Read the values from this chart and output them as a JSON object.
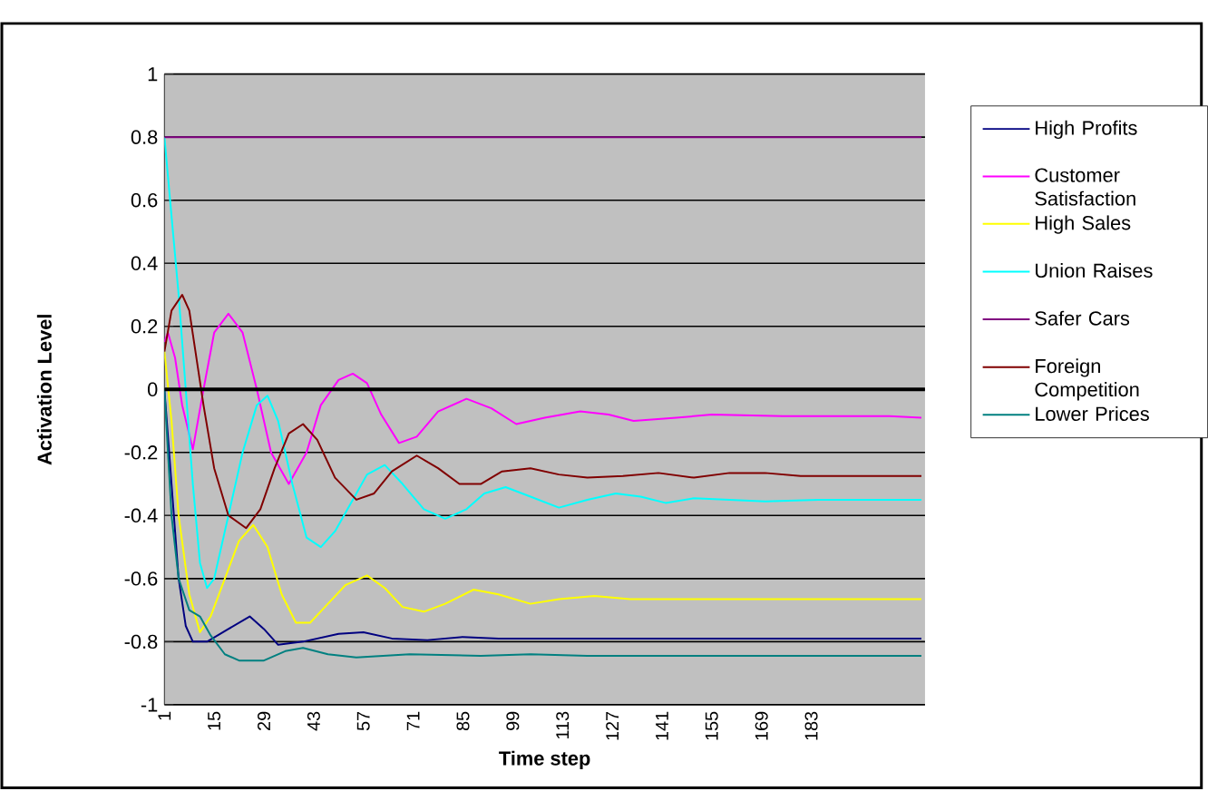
{
  "chart_data": {
    "type": "line",
    "xlabel": "Time step",
    "ylabel": "Activation Level",
    "xlim": [
      1,
      215
    ],
    "xticks": [
      1,
      15,
      29,
      43,
      57,
      71,
      85,
      99,
      113,
      127,
      141,
      155,
      169,
      183
    ],
    "ylim": [
      -1,
      1
    ],
    "yticks": [
      -1,
      -0.8,
      -0.6,
      -0.4,
      -0.2,
      0,
      0.2,
      0.4,
      0.6,
      0.8,
      1
    ],
    "grid": "y",
    "legend": "right",
    "marker": "none",
    "line_style": "solid",
    "series": [
      {
        "name": "High Profits",
        "color": "#000080",
        "x": [
          1,
          3,
          5,
          7,
          9,
          13,
          19,
          25,
          29,
          33,
          40,
          50,
          57,
          65,
          75,
          85,
          95,
          110,
          214
        ],
        "values": [
          0,
          -0.3,
          -0.6,
          -0.75,
          -0.8,
          -0.8,
          -0.76,
          -0.72,
          -0.76,
          -0.81,
          -0.8,
          -0.775,
          -0.77,
          -0.79,
          -0.795,
          -0.785,
          -0.79,
          -0.79,
          -0.79
        ]
      },
      {
        "name": "Customer Satisfaction",
        "color": "#ff00ff",
        "x": [
          1,
          2,
          4,
          6,
          9,
          12,
          15,
          19,
          23,
          27,
          31,
          36,
          41,
          45,
          50,
          54,
          58,
          62,
          67,
          72,
          78,
          86,
          93,
          100,
          108,
          118,
          126,
          133,
          145,
          155,
          175,
          205,
          214
        ],
        "values": [
          0.15,
          0.18,
          0.1,
          -0.05,
          -0.19,
          0,
          0.18,
          0.24,
          0.18,
          0,
          -0.2,
          -0.3,
          -0.2,
          -0.05,
          0.03,
          0.05,
          0.02,
          -0.08,
          -0.17,
          -0.15,
          -0.07,
          -0.03,
          -0.06,
          -0.11,
          -0.09,
          -0.07,
          -0.08,
          -0.1,
          -0.09,
          -0.08,
          -0.085,
          -0.085,
          -0.09
        ]
      },
      {
        "name": "High Sales",
        "color": "#ffff00",
        "x": [
          1,
          3,
          5,
          8,
          11,
          14,
          18,
          22,
          26,
          30,
          34,
          38,
          42,
          47,
          52,
          58,
          63,
          68,
          74,
          80,
          88,
          95,
          104,
          112,
          122,
          132,
          214
        ],
        "values": [
          0.12,
          -0.1,
          -0.4,
          -0.65,
          -0.77,
          -0.72,
          -0.6,
          -0.48,
          -0.43,
          -0.5,
          -0.65,
          -0.74,
          -0.74,
          -0.68,
          -0.62,
          -0.59,
          -0.63,
          -0.69,
          -0.705,
          -0.68,
          -0.635,
          -0.65,
          -0.68,
          -0.665,
          -0.655,
          -0.665,
          -0.665
        ]
      },
      {
        "name": "Union Raises",
        "color": "#00ffff",
        "x": [
          1,
          3,
          5,
          7,
          9,
          11,
          13,
          15,
          19,
          23,
          27,
          30,
          33,
          37,
          41,
          45,
          49,
          54,
          58,
          63,
          68,
          74,
          80,
          86,
          91,
          97,
          104,
          112,
          120,
          128,
          135,
          142,
          150,
          160,
          170,
          185,
          214
        ],
        "values": [
          0.8,
          0.55,
          0.3,
          0,
          -0.3,
          -0.55,
          -0.63,
          -0.6,
          -0.4,
          -0.2,
          -0.05,
          -0.02,
          -0.1,
          -0.3,
          -0.47,
          -0.5,
          -0.45,
          -0.35,
          -0.27,
          -0.24,
          -0.3,
          -0.38,
          -0.41,
          -0.38,
          -0.33,
          -0.31,
          -0.34,
          -0.375,
          -0.35,
          -0.33,
          -0.34,
          -0.36,
          -0.345,
          -0.35,
          -0.355,
          -0.35,
          -0.35
        ]
      },
      {
        "name": "Safer Cars",
        "color": "#800080",
        "x": [
          1,
          214
        ],
        "values": [
          0.8,
          0.8
        ]
      },
      {
        "name": "Foreign Competition",
        "color": "#800000",
        "x": [
          1,
          3,
          6,
          8,
          10,
          12,
          15,
          19,
          24,
          28,
          32,
          36,
          40,
          44,
          49,
          55,
          60,
          65,
          72,
          78,
          84,
          90,
          96,
          104,
          112,
          120,
          130,
          140,
          150,
          160,
          170,
          180,
          214
        ],
        "values": [
          0.12,
          0.25,
          0.3,
          0.25,
          0.1,
          -0.05,
          -0.25,
          -0.4,
          -0.44,
          -0.38,
          -0.25,
          -0.14,
          -0.11,
          -0.16,
          -0.28,
          -0.35,
          -0.33,
          -0.26,
          -0.21,
          -0.25,
          -0.3,
          -0.3,
          -0.26,
          -0.25,
          -0.27,
          -0.28,
          -0.275,
          -0.265,
          -0.28,
          -0.265,
          -0.265,
          -0.275,
          -0.275
        ]
      },
      {
        "name": "Lower Prices",
        "color": "#008080",
        "x": [
          1,
          3,
          5,
          8,
          11,
          14,
          18,
          22,
          29,
          35,
          40,
          47,
          55,
          70,
          90,
          104,
          120,
          214
        ],
        "values": [
          0,
          -0.4,
          -0.6,
          -0.7,
          -0.72,
          -0.78,
          -0.84,
          -0.86,
          -0.86,
          -0.83,
          -0.82,
          -0.84,
          -0.85,
          -0.84,
          -0.845,
          -0.84,
          -0.845,
          -0.845
        ]
      }
    ]
  }
}
